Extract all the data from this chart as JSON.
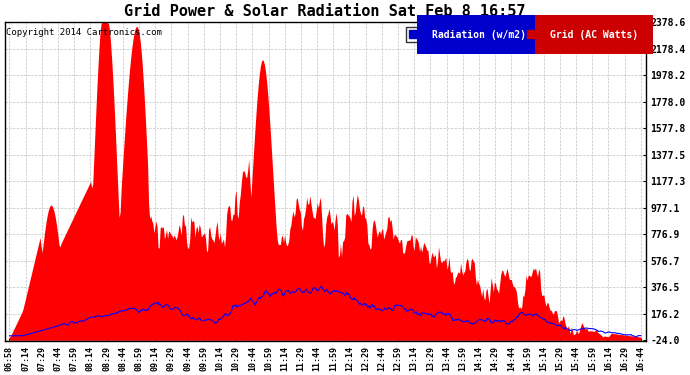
{
  "title": "Grid Power & Solar Radiation Sat Feb 8 16:57",
  "copyright": "Copyright 2014 Cartronics.com",
  "legend_labels": [
    "Radiation (w/m2)",
    "Grid (AC Watts)"
  ],
  "legend_bg_colors": [
    "#0000cc",
    "#cc0000"
  ],
  "bg_color": "#ffffff",
  "grid_color": "#bbbbbb",
  "ymin": -24.0,
  "ymax": 2378.6,
  "yticks": [
    2378.6,
    2178.4,
    1978.2,
    1778.0,
    1577.8,
    1377.5,
    1177.3,
    977.1,
    776.9,
    576.7,
    376.5,
    176.2,
    -24.0
  ],
  "xtick_labels": [
    "06:58",
    "07:14",
    "07:29",
    "07:44",
    "07:59",
    "08:14",
    "08:29",
    "08:44",
    "08:59",
    "09:14",
    "09:29",
    "09:44",
    "09:59",
    "10:14",
    "10:29",
    "10:44",
    "10:59",
    "11:14",
    "11:29",
    "11:44",
    "11:59",
    "12:14",
    "12:29",
    "12:44",
    "12:59",
    "13:14",
    "13:29",
    "13:44",
    "13:59",
    "14:14",
    "14:29",
    "14:44",
    "14:59",
    "15:14",
    "15:29",
    "15:44",
    "15:59",
    "16:14",
    "16:29",
    "16:44"
  ],
  "red_fill_color": "#ff0000",
  "blue_line_color": "#0000ff",
  "baseline": -24.0
}
